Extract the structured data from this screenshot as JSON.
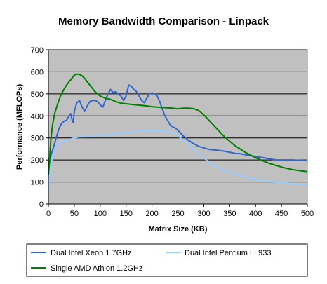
{
  "chart_data": {
    "type": "line",
    "title": "Memory Bandwidth Comparison - Linpack",
    "xlabel": "Matrix Size (KB)",
    "ylabel": "Performance (MFLOPs)",
    "xlim": [
      0,
      500
    ],
    "ylim": [
      0,
      700
    ],
    "x_ticks": [
      "0",
      "50",
      "100",
      "150",
      "200",
      "250",
      "300",
      "350",
      "400",
      "450",
      "500"
    ],
    "y_ticks": [
      "0",
      "100",
      "200",
      "300",
      "400",
      "500",
      "600",
      "700"
    ],
    "plot_background": "#c0c0c0",
    "grid": "horizontal",
    "legend_position": "bottom",
    "series": [
      {
        "name": "Dual Intel Xeon 1.7GHz",
        "color": "#3366cc",
        "points": [
          [
            0,
            150
          ],
          [
            3,
            200
          ],
          [
            6,
            230
          ],
          [
            10,
            260
          ],
          [
            15,
            300
          ],
          [
            20,
            340
          ],
          [
            25,
            365
          ],
          [
            30,
            375
          ],
          [
            35,
            380
          ],
          [
            40,
            400
          ],
          [
            43,
            410
          ],
          [
            46,
            380
          ],
          [
            48,
            370
          ],
          [
            50,
            420
          ],
          [
            55,
            460
          ],
          [
            60,
            470
          ],
          [
            65,
            440
          ],
          [
            70,
            420
          ],
          [
            75,
            445
          ],
          [
            80,
            465
          ],
          [
            85,
            470
          ],
          [
            90,
            470
          ],
          [
            95,
            465
          ],
          [
            100,
            450
          ],
          [
            105,
            440
          ],
          [
            110,
            470
          ],
          [
            115,
            500
          ],
          [
            120,
            520
          ],
          [
            125,
            505
          ],
          [
            130,
            510
          ],
          [
            135,
            500
          ],
          [
            140,
            490
          ],
          [
            145,
            470
          ],
          [
            150,
            490
          ],
          [
            155,
            540
          ],
          [
            160,
            535
          ],
          [
            165,
            520
          ],
          [
            170,
            510
          ],
          [
            175,
            490
          ],
          [
            180,
            470
          ],
          [
            185,
            460
          ],
          [
            190,
            480
          ],
          [
            195,
            500
          ],
          [
            200,
            505
          ],
          [
            205,
            500
          ],
          [
            210,
            490
          ],
          [
            215,
            465
          ],
          [
            220,
            430
          ],
          [
            225,
            400
          ],
          [
            230,
            380
          ],
          [
            235,
            360
          ],
          [
            240,
            350
          ],
          [
            245,
            345
          ],
          [
            250,
            335
          ],
          [
            260,
            310
          ],
          [
            270,
            290
          ],
          [
            280,
            275
          ],
          [
            290,
            262
          ],
          [
            300,
            255
          ],
          [
            310,
            248
          ],
          [
            320,
            246
          ],
          [
            330,
            243
          ],
          [
            340,
            240
          ],
          [
            350,
            235
          ],
          [
            360,
            230
          ],
          [
            370,
            228
          ],
          [
            380,
            224
          ],
          [
            390,
            220
          ],
          [
            400,
            215
          ],
          [
            410,
            212
          ],
          [
            420,
            208
          ],
          [
            430,
            204
          ],
          [
            440,
            200
          ],
          [
            450,
            200
          ],
          [
            460,
            200
          ],
          [
            470,
            200
          ],
          [
            480,
            199
          ],
          [
            490,
            198
          ],
          [
            500,
            197
          ]
        ]
      },
      {
        "name": "Dual Intel Pentium III 933",
        "color": "#99ccff",
        "points": [
          [
            0,
            60
          ],
          [
            2,
            130
          ],
          [
            5,
            180
          ],
          [
            10,
            230
          ],
          [
            15,
            255
          ],
          [
            20,
            270
          ],
          [
            25,
            280
          ],
          [
            30,
            285
          ],
          [
            40,
            292
          ],
          [
            50,
            300
          ],
          [
            60,
            305
          ],
          [
            70,
            305
          ],
          [
            80,
            308
          ],
          [
            90,
            310
          ],
          [
            100,
            312
          ],
          [
            110,
            315
          ],
          [
            120,
            318
          ],
          [
            130,
            320
          ],
          [
            140,
            322
          ],
          [
            150,
            325
          ],
          [
            160,
            328
          ],
          [
            170,
            330
          ],
          [
            180,
            332
          ],
          [
            190,
            333
          ],
          [
            200,
            333
          ],
          [
            210,
            332
          ],
          [
            220,
            330
          ],
          [
            230,
            330
          ],
          [
            240,
            328
          ],
          [
            250,
            310
          ],
          [
            260,
            290
          ],
          [
            270,
            270
          ],
          [
            280,
            250
          ],
          [
            290,
            230
          ],
          [
            300,
            210
          ],
          [
            310,
            190
          ],
          [
            320,
            175
          ],
          [
            330,
            163
          ],
          [
            340,
            153
          ],
          [
            350,
            145
          ],
          [
            360,
            137
          ],
          [
            370,
            130
          ],
          [
            380,
            123
          ],
          [
            390,
            117
          ],
          [
            400,
            112
          ],
          [
            410,
            108
          ],
          [
            420,
            105
          ],
          [
            430,
            103
          ],
          [
            440,
            100
          ],
          [
            450,
            97
          ],
          [
            460,
            95
          ],
          [
            470,
            93
          ],
          [
            480,
            92
          ],
          [
            490,
            91
          ],
          [
            500,
            90
          ]
        ]
      },
      {
        "name": "Single AMD Athlon 1.2GHz",
        "color": "#008000",
        "points": [
          [
            0,
            130
          ],
          [
            2,
            200
          ],
          [
            5,
            300
          ],
          [
            8,
            360
          ],
          [
            12,
            410
          ],
          [
            16,
            440
          ],
          [
            20,
            470
          ],
          [
            25,
            500
          ],
          [
            30,
            520
          ],
          [
            35,
            540
          ],
          [
            40,
            555
          ],
          [
            45,
            570
          ],
          [
            50,
            585
          ],
          [
            55,
            590
          ],
          [
            60,
            588
          ],
          [
            65,
            582
          ],
          [
            70,
            570
          ],
          [
            75,
            555
          ],
          [
            80,
            540
          ],
          [
            85,
            525
          ],
          [
            90,
            510
          ],
          [
            95,
            500
          ],
          [
            100,
            490
          ],
          [
            110,
            480
          ],
          [
            120,
            475
          ],
          [
            130,
            465
          ],
          [
            140,
            458
          ],
          [
            150,
            455
          ],
          [
            160,
            452
          ],
          [
            170,
            450
          ],
          [
            180,
            448
          ],
          [
            190,
            445
          ],
          [
            200,
            442
          ],
          [
            210,
            440
          ],
          [
            220,
            438
          ],
          [
            230,
            437
          ],
          [
            240,
            435
          ],
          [
            250,
            432
          ],
          [
            260,
            435
          ],
          [
            270,
            435
          ],
          [
            280,
            433
          ],
          [
            290,
            425
          ],
          [
            300,
            405
          ],
          [
            310,
            380
          ],
          [
            320,
            355
          ],
          [
            330,
            330
          ],
          [
            340,
            305
          ],
          [
            350,
            285
          ],
          [
            360,
            265
          ],
          [
            370,
            250
          ],
          [
            380,
            235
          ],
          [
            390,
            222
          ],
          [
            400,
            210
          ],
          [
            410,
            200
          ],
          [
            420,
            190
          ],
          [
            430,
            182
          ],
          [
            440,
            175
          ],
          [
            450,
            168
          ],
          [
            460,
            162
          ],
          [
            470,
            157
          ],
          [
            480,
            153
          ],
          [
            490,
            150
          ],
          [
            500,
            147
          ]
        ]
      }
    ]
  }
}
